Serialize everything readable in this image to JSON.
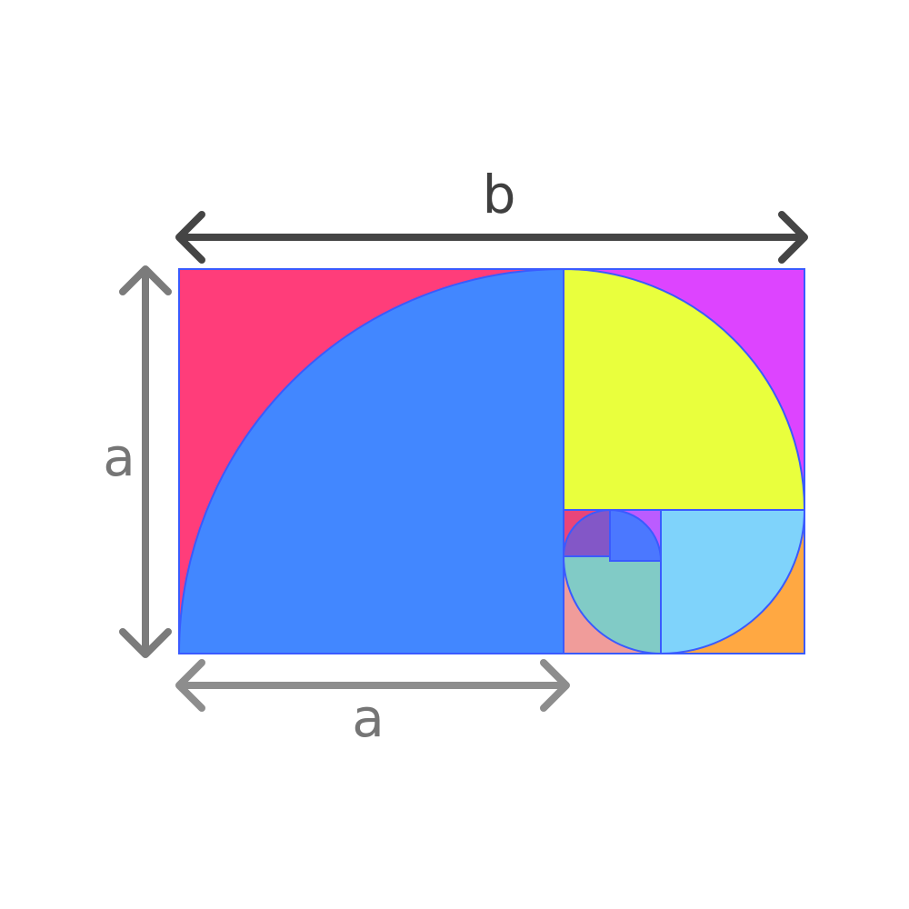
{
  "labels": {
    "top_dimension": "b",
    "left_dimension": "a",
    "bottom_dimension": "a"
  },
  "colors": {
    "background": "#ffffff",
    "outline": "#3a5bff",
    "arrow_b": "#454545",
    "arrow_a": "#7b7b7b",
    "arrow_a_bottom": "#8d8d8d",
    "squares": [
      {
        "square": "#ff3d7a",
        "quarter_disc": "#4287ff"
      },
      {
        "square": "#dd44ff",
        "quarter_disc": "#e9ff3d"
      },
      {
        "square": "#ffa842",
        "quarter_disc": "#7fd3fb"
      },
      {
        "square": "#f09c9a",
        "quarter_disc": "#81cbc6"
      },
      {
        "square": "#e9457a",
        "quarter_disc": "#8357c7"
      },
      {
        "square": "#bb5cff",
        "quarter_disc": "#4b78ff"
      },
      {
        "square": "#ffffff",
        "quarter_disc": "#d9f3f6"
      },
      {
        "square": "#ffffff",
        "quarter_disc": "#2fdba6"
      },
      {
        "square": "#ffffff",
        "quarter_disc": "#8aa9ff"
      }
    ]
  }
}
